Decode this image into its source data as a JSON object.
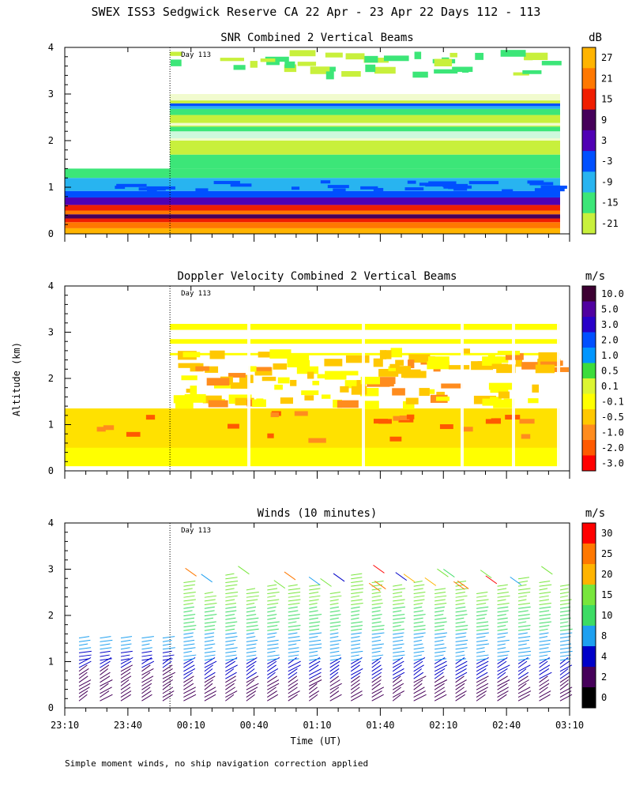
{
  "title": "SWEX ISS3 Sedgwick Reserve CA  22 Apr - 23 Apr 22 Days 112 - 113",
  "footnote": "Simple moment winds, no ship navigation correction applied",
  "day_marker": "Day 113",
  "ylabel": "Altitude (km)",
  "xlabel": "Time (UT)",
  "colors": {
    "snr_scale": [
      "#c8f03c",
      "#3ce678",
      "#28b4f0",
      "#0050ff",
      "#5000b4",
      "#46005a",
      "#f01e00",
      "#ff7800",
      "#ffb400"
    ],
    "vel_scale": [
      "#ff0000",
      "#ff5a00",
      "#ff8c1e",
      "#ffc800",
      "#ffff00",
      "#dcf532",
      "#3cdc3c",
      "#0096ff",
      "#0050ff",
      "#2800c8",
      "#5000a0",
      "#3c0032"
    ],
    "wind_scale": [
      "#000000",
      "#46005a",
      "#0000c8",
      "#1ea0f0",
      "#3cdc64",
      "#78e63c",
      "#ffb400",
      "#ff7800",
      "#ff0000"
    ]
  },
  "chart_data": [
    {
      "type": "heatmap",
      "title": "SNR Combined 2 Vertical Beams",
      "unit": "dB",
      "yticks": [
        "0",
        "1",
        "2",
        "3",
        "4"
      ],
      "ylim": [
        0,
        4
      ],
      "colorbar_ticks": [
        "27",
        "21",
        "15",
        "9",
        "3",
        "-3",
        "-9",
        "-15",
        "-21"
      ],
      "day_boundary": "00:00"
    },
    {
      "type": "heatmap",
      "title": "Doppler Velocity Combined 2 Vertical Beams",
      "unit": "m/s",
      "yticks": [
        "0",
        "1",
        "2",
        "3",
        "4"
      ],
      "ylim": [
        0,
        4
      ],
      "colorbar_ticks": [
        "10.0",
        "5.0",
        "3.0",
        "2.0",
        "1.0",
        "0.5",
        "0.1",
        "-0.1",
        "-0.5",
        "-1.0",
        "-2.0",
        "-3.0"
      ],
      "day_boundary": "00:00"
    },
    {
      "type": "scatter",
      "title": "Winds (10 minutes)",
      "unit": "m/s",
      "yticks": [
        "0",
        "1",
        "2",
        "3",
        "4"
      ],
      "ylim": [
        0,
        4
      ],
      "colorbar_ticks": [
        "30",
        "25",
        "20",
        "15",
        "10",
        "8",
        "4",
        "2",
        "0"
      ],
      "xticks": [
        "23:10",
        "23:40",
        "00:10",
        "00:40",
        "01:10",
        "01:40",
        "02:10",
        "02:40",
        "03:10"
      ],
      "day_boundary": "00:00"
    }
  ]
}
